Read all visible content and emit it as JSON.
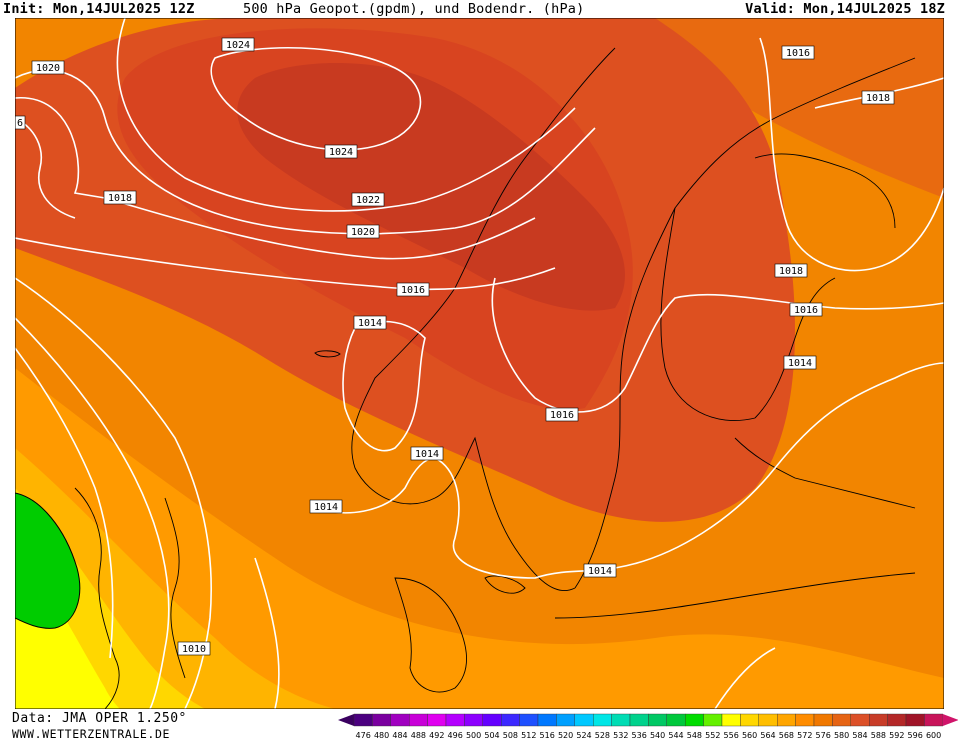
{
  "header": {
    "init": "Init: Mon,14JUL2025 12Z",
    "title": "500 hPa Geopot.(gpdm), und Bodendr. (hPa)",
    "valid": "Valid: Mon,14JUL2025 18Z"
  },
  "footer": {
    "data_source": "Data: JMA OPER 1.250°",
    "website": "WWW.WETTERZENTRALE.DE"
  },
  "colors": {
    "gpdm_552": "#00cc00",
    "gpdm_556": "#ffff00",
    "gpdm_560": "#ffd700",
    "gpdm_564": "#ffb400",
    "gpdm_568": "#ff9a00",
    "gpdm_572": "#f28500",
    "gpdm_576": "#e86a10",
    "gpdm_580": "#dd5020",
    "gpdm_584": "#c83a20",
    "isobar": "#ffffff",
    "coastline": "#000000"
  },
  "legend": {
    "ticks": [
      "476",
      "480",
      "484",
      "488",
      "492",
      "496",
      "500",
      "504",
      "508",
      "512",
      "516",
      "520",
      "524",
      "528",
      "532",
      "536",
      "540",
      "544",
      "548",
      "552",
      "556",
      "560",
      "564",
      "568",
      "572",
      "576",
      "580",
      "584",
      "588",
      "592",
      "596",
      "600"
    ],
    "colors": [
      "#4b0080",
      "#7a00a0",
      "#a000c0",
      "#c800d8",
      "#e000f0",
      "#b400ff",
      "#8c00ff",
      "#6400ff",
      "#3c28ff",
      "#1e50ff",
      "#0078ff",
      "#00a0ff",
      "#00c8ff",
      "#00e6e6",
      "#00dcb4",
      "#00d28c",
      "#00c864",
      "#00c83c",
      "#00dc00",
      "#64f000",
      "#ffff00",
      "#ffd700",
      "#ffbe00",
      "#ffa500",
      "#ff8c00",
      "#f07800",
      "#e66414",
      "#dc5028",
      "#c83c28",
      "#b42828",
      "#a01428",
      "#c8145a"
    ]
  },
  "isobar_labels": [
    "1024",
    "1024",
    "1022",
    "1020",
    "1020",
    "1018",
    "1018",
    "1018",
    "1016",
    "1016",
    "1016",
    "1016",
    "1014",
    "1014",
    "1014",
    "1014",
    "1014",
    "1010",
    "6"
  ]
}
